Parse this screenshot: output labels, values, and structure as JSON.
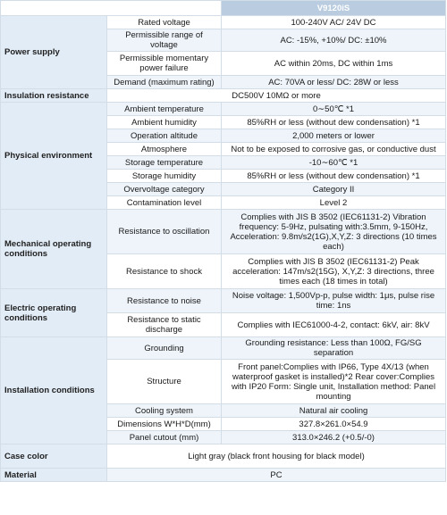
{
  "header": {
    "model": "V9120iS"
  },
  "rows": [
    {
      "cat": "Power supply",
      "span": 4,
      "sub": "Rated voltage",
      "val": "100-240V AC/ 24V DC",
      "h": 15
    },
    {
      "sub": "Permissible range of voltage",
      "val": "AC: -15%, +10%/ DC: ±10%",
      "h": 15
    },
    {
      "sub": "Permissible momentary power failure",
      "val": "AC within 20ms, DC within 1ms",
      "h": 27
    },
    {
      "sub": "Demand (maximum rating)",
      "val": "AC: 70VA or less/ DC: 28W or less",
      "h": 15
    },
    {
      "cat": "Insulation resistance",
      "span": 1,
      "sub": "",
      "val": "DC500V 10MΩ or more",
      "h": 15
    },
    {
      "cat": "Physical environment",
      "span": 8,
      "sub": "Ambient temperature",
      "val": "0∼50℃ *1",
      "h": 15
    },
    {
      "sub": "Ambient humidity",
      "val": "85%RH or less (without dew condensation) *1",
      "h": 15
    },
    {
      "sub": "Operation altitude",
      "val": "2,000 meters or lower",
      "h": 15
    },
    {
      "sub": "Atmosphere",
      "val": "Not to be exposed to corrosive gas, or conductive dust",
      "h": 15
    },
    {
      "sub": "Storage temperature",
      "val": "-10∼60℃ *1",
      "h": 15
    },
    {
      "sub": "Storage humidity",
      "val": "85%RH or less (without dew condensation) *1",
      "h": 15
    },
    {
      "sub": "Overvoltage category",
      "val": "Category II",
      "h": 15
    },
    {
      "sub": "Contamination level",
      "val": "Level 2",
      "h": 15
    },
    {
      "cat": "Mechanical operating conditions",
      "span": 2,
      "sub": "Resistance to oscillation",
      "val": "Complies with JIS B 3502 (IEC61131-2) Vibration frequency: 5-9Hz, pulsating with:3.5mm, 9-150Hz, Acceleration: 9.8m/s2(1G),X,Y,Z: 3 directions (10 times each)",
      "h": 50
    },
    {
      "sub": "Resistance to shock",
      "val": "Complies with JIS B 3502 (IEC61131-2) Peak acceleration: 147m/s2(15G), X,Y,Z: 3 directions, three times each (18 times in total)",
      "h": 39
    },
    {
      "cat": "Electric operating conditions",
      "span": 2,
      "sub": "Resistance to noise",
      "val": "Noise voltage: 1,500Vp-p, pulse width: 1μs, pulse rise time: 1ns",
      "h": 27
    },
    {
      "sub": "Resistance to static discharge",
      "val": "Complies with IEC61000-4-2, contact: 6kV, air: 8kV",
      "h": 27
    },
    {
      "cat": "Installation conditions",
      "span": 5,
      "sub": "Grounding",
      "val": "Grounding resistance: Less than 100Ω, FG/SG separation",
      "h": 15
    },
    {
      "sub": "Structure",
      "val": "Front panel:Complies with IP66, Type 4X/13 (when waterproof gasket is installed)*2 Rear cover:Complies with IP20 Form: Single unit, Installation method: Panel mounting",
      "h": 50
    },
    {
      "sub": "Cooling system",
      "val": "Natural air cooling",
      "h": 15
    },
    {
      "sub": "Dimensions W*H*D(mm)",
      "val": "327.8×261.0×54.9",
      "h": 15
    },
    {
      "sub": "Panel cutout (mm)",
      "val": "313.0×246.2 (+0.5/-0)",
      "h": 15
    },
    {
      "cat": "Case color",
      "span": 1,
      "sub": "",
      "val": "Light gray (black front housing for black model)",
      "h": 27
    },
    {
      "cat": "Material",
      "span": 1,
      "sub": "",
      "val": "PC",
      "h": 15
    }
  ]
}
